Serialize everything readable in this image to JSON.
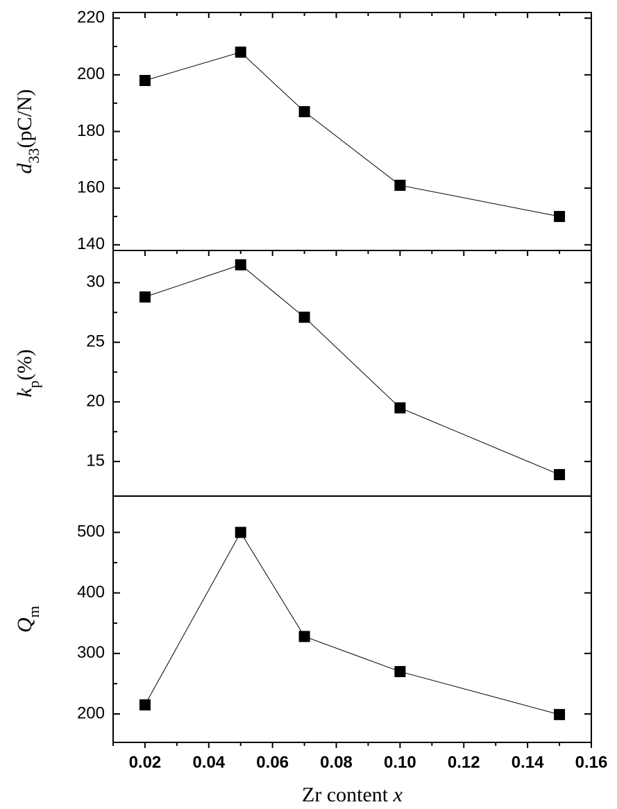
{
  "chart_data": [
    {
      "type": "line",
      "y_label": [
        "d",
        "33",
        "(pC/N)"
      ],
      "x": [
        0.02,
        0.05,
        0.07,
        0.1,
        0.15
      ],
      "values": [
        198,
        208,
        187,
        161,
        150
      ],
      "color": "#000000",
      "xlim": [
        0.01,
        0.16
      ],
      "ylim": [
        138,
        222
      ],
      "yticks": [
        140,
        160,
        180,
        200,
        220
      ]
    },
    {
      "type": "line",
      "y_label": [
        "k",
        "p",
        "(%)"
      ],
      "x": [
        0.02,
        0.05,
        0.07,
        0.1,
        0.15
      ],
      "values": [
        28.8,
        31.5,
        27.1,
        19.5,
        13.9
      ],
      "color": "#000000",
      "xlim": [
        0.01,
        0.16
      ],
      "ylim": [
        12.1,
        32.7
      ],
      "yticks": [
        15,
        20,
        25,
        30
      ]
    },
    {
      "type": "line",
      "y_label": [
        "Q",
        "m"
      ],
      "x": [
        0.02,
        0.05,
        0.07,
        0.1,
        0.15
      ],
      "values": [
        215,
        500,
        328,
        270,
        199
      ],
      "color": "#000000",
      "xlim": [
        0.01,
        0.16
      ],
      "ylim": [
        153,
        560
      ],
      "yticks": [
        200,
        300,
        400,
        500
      ],
      "x_label": [
        "Zr content ",
        "x"
      ],
      "xticks": [
        0.02,
        0.04,
        0.06,
        0.08,
        {
          "value": 0.1,
          "label": "0.10"
        },
        0.12,
        0.14,
        0.16
      ]
    }
  ]
}
